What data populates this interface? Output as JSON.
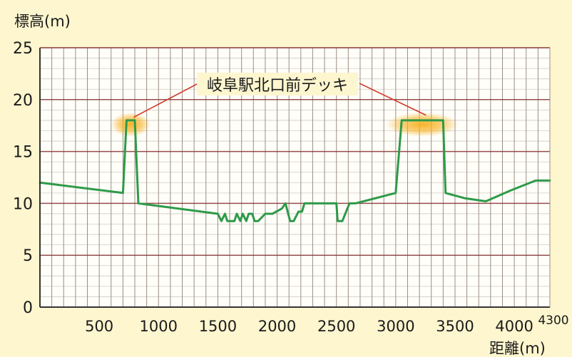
{
  "chart_data": {
    "type": "line",
    "ylabel": "標高(m)",
    "xlabel": "距離(m)",
    "x_tick_labels": [
      "500",
      "1000",
      "1500",
      "2000",
      "2500",
      "3000",
      "3500",
      "4000",
      "4300"
    ],
    "y_tick_labels": [
      "0",
      "5",
      "10",
      "15",
      "20",
      "25"
    ],
    "xlim": [
      0,
      4300
    ],
    "ylim": [
      0,
      25
    ],
    "grid": true,
    "annotation": "岐阜駅北口前デッキ",
    "highlight_ranges": [
      [
        730,
        800
      ],
      [
        3050,
        3400
      ]
    ],
    "colors": {
      "background": "#fdf6cf",
      "plot_background": "#fffef9",
      "line": "#2e9a48",
      "grid_minor": "#9a8f84",
      "grid_major": "#8a3a3a",
      "annotation_line": "#d23a2a",
      "highlight": "#f7b020"
    },
    "series": [
      {
        "x": [
          0,
          700,
          730,
          800,
          830,
          1500,
          1530,
          1560,
          1580,
          1640,
          1660,
          1690,
          1710,
          1740,
          1760,
          1790,
          1810,
          1840,
          1900,
          1960,
          2040,
          2070,
          2110,
          2140,
          2180,
          2210,
          2230,
          2270,
          2320,
          2420,
          2500,
          2510,
          2550,
          2610,
          2660,
          3000,
          3050,
          3400,
          3420,
          3580,
          3760,
          3960,
          4180,
          4300
        ],
        "y": [
          12,
          11,
          18,
          18,
          10,
          9,
          8.3,
          9,
          8.3,
          8.3,
          9,
          8.3,
          9,
          8.3,
          9,
          9,
          8.3,
          8.3,
          9,
          9,
          9.5,
          10,
          8.3,
          8.3,
          9.2,
          9.2,
          10,
          10,
          10,
          10,
          10,
          8.3,
          8.3,
          10,
          10,
          11,
          18,
          18,
          11,
          10.5,
          10.2,
          11.2,
          12.2,
          12.2
        ]
      }
    ]
  }
}
